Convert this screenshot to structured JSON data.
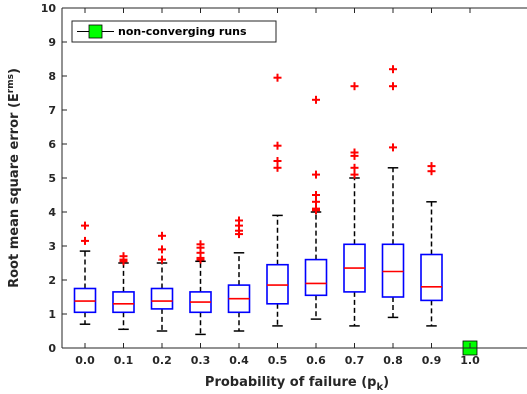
{
  "chart_data": {
    "type": "boxplot",
    "xlabel": "Probability of failure (p",
    "xlabel_sub": "k",
    "xlabel_end": ")",
    "ylabel": "Root mean square error (E",
    "ylabel_sup": "rms",
    "ylabel_end": ")",
    "ylim": [
      0,
      10
    ],
    "yticks": [
      "0",
      "1",
      "2",
      "3",
      "4",
      "5",
      "6",
      "7",
      "8",
      "9",
      "10"
    ],
    "grid": false,
    "legend_position": "top-left",
    "categories": [
      "0.0",
      "0.1",
      "0.2",
      "0.3",
      "0.4",
      "0.5",
      "0.6",
      "0.7",
      "0.8",
      "0.9",
      "1.0"
    ],
    "boxes": [
      {
        "whisker_low": 0.7,
        "q1": 1.05,
        "median": 1.38,
        "q3": 1.75,
        "whisker_high": 2.85,
        "outliers": [
          3.15,
          3.6
        ]
      },
      {
        "whisker_low": 0.55,
        "q1": 1.05,
        "median": 1.3,
        "q3": 1.65,
        "whisker_high": 2.5,
        "outliers": [
          2.55,
          2.6,
          2.7
        ]
      },
      {
        "whisker_low": 0.5,
        "q1": 1.15,
        "median": 1.38,
        "q3": 1.75,
        "whisker_high": 2.5,
        "outliers": [
          2.6,
          2.9,
          3.3
        ]
      },
      {
        "whisker_low": 0.4,
        "q1": 1.05,
        "median": 1.35,
        "q3": 1.65,
        "whisker_high": 2.55,
        "outliers": [
          2.6,
          2.65,
          2.8,
          2.95,
          3.05
        ]
      },
      {
        "whisker_low": 0.5,
        "q1": 1.05,
        "median": 1.45,
        "q3": 1.85,
        "whisker_high": 2.8,
        "outliers": [
          3.35,
          3.45,
          3.6,
          3.75
        ]
      },
      {
        "whisker_low": 0.65,
        "q1": 1.3,
        "median": 1.85,
        "q3": 2.45,
        "whisker_high": 3.9,
        "outliers": [
          5.3,
          5.5,
          5.95,
          7.95
        ]
      },
      {
        "whisker_low": 0.85,
        "q1": 1.55,
        "median": 1.9,
        "q3": 2.6,
        "whisker_high": 4.0,
        "outliers": [
          4.05,
          4.1,
          4.3,
          4.5,
          5.1,
          7.3
        ]
      },
      {
        "whisker_low": 0.65,
        "q1": 1.65,
        "median": 2.35,
        "q3": 3.05,
        "whisker_high": 5.0,
        "outliers": [
          5.1,
          5.3,
          5.65,
          5.75,
          7.7
        ]
      },
      {
        "whisker_low": 0.9,
        "q1": 1.5,
        "median": 2.25,
        "q3": 3.05,
        "whisker_high": 5.3,
        "outliers": [
          5.9,
          7.7,
          8.2
        ]
      },
      {
        "whisker_low": 0.65,
        "q1": 1.4,
        "median": 1.8,
        "q3": 2.75,
        "whisker_high": 4.3,
        "outliers": [
          5.2,
          5.35
        ]
      },
      null
    ],
    "nonconverging": [
      {
        "x": "1.0",
        "y": 0
      }
    ],
    "legend": [
      {
        "label": "non-converging runs",
        "marker": "green-square"
      }
    ],
    "colors": {
      "box": "#0000ff",
      "median": "#ff0000",
      "whisker": "#000000",
      "outlier": "#ff0000",
      "nonconverging_fill": "#00ff00",
      "axis": "#262626"
    }
  }
}
